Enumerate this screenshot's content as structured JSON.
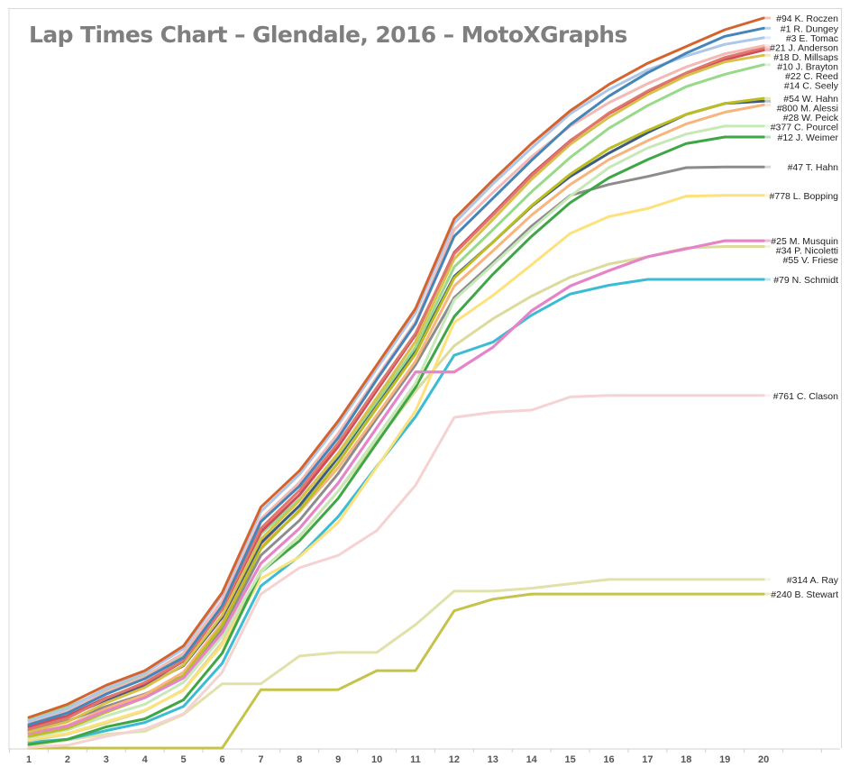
{
  "chart_data": {
    "type": "line",
    "title": "Lap Times Chart – Glendale, 2016 – MotoXGraphs",
    "xlabel": "",
    "ylabel": "",
    "x": [
      1,
      2,
      3,
      4,
      5,
      6,
      7,
      8,
      9,
      10,
      11,
      12,
      13,
      14,
      15,
      16,
      17,
      18,
      19,
      20
    ],
    "xlim": [
      1,
      21
    ],
    "ylim": [
      0,
      100
    ],
    "grid": false,
    "legend": "direct-labels-right",
    "series": [
      {
        "name": "#94 K. Roczen",
        "color": "#d4632e",
        "values": [
          4.2,
          6.0,
          8.6,
          10.6,
          14.0,
          21.3,
          33.0,
          38.0,
          44.8,
          52.5,
          60.2,
          72.5,
          77.8,
          82.8,
          87.3,
          90.9,
          93.8,
          96.1,
          98.4,
          100.0
        ]
      },
      {
        "name": "#1 R. Dungey",
        "color": "#4585b8",
        "values": [
          3.2,
          4.8,
          7.4,
          9.5,
          12.4,
          19.5,
          31.0,
          35.9,
          42.5,
          50.5,
          58.1,
          70.1,
          75.3,
          80.5,
          85.4,
          89.3,
          92.5,
          95.2,
          97.5,
          98.6
        ]
      },
      {
        "name": "#3 E. Tomac",
        "color": "#aec7e8",
        "values": [
          3.7,
          5.4,
          8.2,
          10.3,
          13.6,
          21.0,
          32.4,
          37.5,
          44.3,
          52.0,
          59.6,
          71.9,
          77.3,
          82.2,
          86.9,
          90.2,
          92.9,
          94.8,
          96.4,
          97.3
        ]
      },
      {
        "name": "#21 J. Anderson",
        "color": "#f2b9b5",
        "values": [
          3.4,
          5.0,
          7.7,
          9.8,
          13.0,
          20.2,
          31.4,
          36.4,
          43.1,
          50.8,
          58.4,
          71.0,
          76.1,
          81.0,
          85.2,
          88.4,
          91.0,
          93.3,
          95.1,
          96.2
        ]
      },
      {
        "name": "#18 D. Millsaps",
        "color": "#e0776d",
        "values": [
          2.6,
          4.1,
          6.8,
          9.0,
          12.0,
          19.1,
          30.1,
          35.3,
          41.8,
          49.4,
          56.8,
          67.7,
          73.0,
          78.4,
          83.1,
          87.0,
          90.0,
          92.5,
          94.6,
          95.9
        ]
      },
      {
        "name": "#22 C. Reed",
        "color": "#d8c14b",
        "values": [
          2.2,
          3.6,
          6.2,
          8.3,
          11.4,
          18.2,
          28.6,
          33.9,
          40.4,
          48.0,
          55.7,
          67.0,
          72.4,
          77.9,
          82.7,
          86.4,
          89.5,
          92.1,
          94.0,
          94.9
        ]
      },
      {
        "name": "#10 J. Brayton",
        "color": "#cf4b5a",
        "values": [
          3.0,
          4.4,
          6.9,
          8.8,
          11.9,
          19.0,
          29.6,
          34.7,
          41.3,
          49.0,
          56.6,
          67.9,
          73.2,
          78.6,
          83.2,
          86.9,
          89.8,
          92.3,
          94.3,
          95.6
        ]
      },
      {
        "name": "#14 C. Seely",
        "color": "#98d98a",
        "values": [
          3.9,
          5.6,
          8.0,
          9.9,
          12.8,
          19.3,
          29.3,
          34.1,
          40.2,
          47.5,
          54.9,
          65.9,
          71.0,
          76.2,
          80.9,
          84.9,
          88.0,
          90.6,
          92.3,
          93.6
        ]
      },
      {
        "name": "#25 M. Musquin",
        "color": "#e584c8",
        "values": [
          2.0,
          3.0,
          5.1,
          6.9,
          9.6,
          15.8,
          25.3,
          30.1,
          36.3,
          43.9,
          51.5,
          51.5,
          54.9,
          59.9,
          63.3,
          65.4,
          67.3,
          68.4,
          69.5,
          69.5
        ]
      },
      {
        "name": "#54 W. Hahn",
        "color": "#bcbd22",
        "values": [
          1.6,
          2.7,
          4.9,
          6.9,
          9.9,
          16.8,
          27.3,
          32.6,
          39.1,
          46.6,
          54.0,
          64.4,
          69.3,
          74.3,
          78.6,
          82.1,
          84.6,
          86.8,
          88.3,
          89.0
        ]
      },
      {
        "name": "#800 M. Alessi",
        "color": "#3d5a80",
        "values": [
          2.9,
          4.3,
          6.6,
          8.5,
          11.3,
          17.9,
          28.1,
          33.2,
          39.8,
          47.3,
          54.4,
          64.6,
          69.3,
          74.2,
          78.3,
          81.5,
          84.3,
          86.8,
          88.3,
          88.6
        ]
      },
      {
        "name": "#28 W. Peick",
        "color": "#f8b47d",
        "values": [
          1.9,
          3.1,
          5.4,
          7.3,
          10.4,
          17.2,
          27.7,
          32.4,
          38.4,
          45.6,
          53.0,
          63.3,
          68.1,
          73.0,
          77.2,
          80.6,
          83.2,
          85.5,
          87.1,
          88.1
        ]
      },
      {
        "name": "#377 C. Pourcel",
        "color": "#c7e8b8",
        "values": [
          1.4,
          2.5,
          4.4,
          6.0,
          9.0,
          15.3,
          24.1,
          29.1,
          35.2,
          42.6,
          50.0,
          61.4,
          66.2,
          71.1,
          75.6,
          79.5,
          82.2,
          84.1,
          85.2,
          85.2
        ]
      },
      {
        "name": "#12 J. Weimer",
        "color": "#3fa645",
        "values": [
          0.5,
          1.2,
          2.9,
          4.0,
          6.6,
          13.0,
          24.1,
          28.4,
          34.2,
          41.8,
          49.4,
          59.1,
          64.9,
          70.1,
          74.7,
          78.1,
          80.6,
          82.8,
          83.7,
          83.7
        ]
      },
      {
        "name": "#47 T. Hahn",
        "color": "#8c8c8c",
        "values": [
          2.4,
          3.7,
          5.7,
          7.4,
          9.9,
          16.3,
          26.4,
          31.2,
          37.6,
          45.2,
          52.5,
          61.7,
          66.5,
          71.5,
          75.7,
          77.2,
          78.3,
          79.5,
          79.6,
          79.6
        ]
      },
      {
        "name": "#778 L. Bopping",
        "color": "#fde17c",
        "values": [
          1.2,
          2.0,
          3.6,
          5.2,
          7.9,
          14.1,
          23.2,
          26.2,
          30.9,
          38.5,
          46.2,
          58.3,
          62.0,
          66.2,
          70.5,
          72.8,
          73.9,
          75.6,
          75.7,
          75.7
        ]
      },
      {
        "name": "#34 P. Nicoletti",
        "color": "#e384c8",
        "values": [
          2.0,
          3.0,
          5.1,
          6.9,
          9.6,
          15.8,
          25.3,
          30.1,
          36.3,
          43.9,
          51.5,
          51.5,
          54.9,
          59.9,
          63.3,
          65.4,
          67.3,
          68.4,
          69.5,
          69.5
        ]
      },
      {
        "name": "#55 V. Friese",
        "color": "#dbdb9d",
        "values": [
          1.0,
          1.9,
          3.4,
          5.1,
          8.0,
          14.5,
          24.3,
          29.0,
          35.2,
          42.0,
          48.9,
          55.1,
          58.8,
          61.9,
          64.5,
          66.3,
          67.3,
          68.5,
          68.7,
          68.7
        ]
      },
      {
        "name": "#79 N. Schmidt",
        "color": "#3cbcd4",
        "values": [
          0.8,
          1.2,
          2.4,
          3.5,
          5.7,
          11.6,
          22.2,
          26.3,
          31.7,
          38.6,
          45.4,
          53.8,
          55.6,
          59.3,
          62.2,
          63.4,
          64.2,
          64.2,
          64.2,
          64.2
        ]
      },
      {
        "name": "#761 C. Clason",
        "color": "#f4d3d2",
        "values": [
          0.1,
          0.4,
          1.6,
          2.6,
          4.7,
          10.4,
          21.1,
          24.7,
          26.4,
          29.8,
          36.0,
          45.3,
          46.0,
          46.3,
          48.1,
          48.3,
          48.3,
          48.3,
          48.3,
          48.3
        ]
      },
      {
        "name": "#314 A. Ray",
        "color": "#e1e1aa",
        "values": [
          0.3,
          1.1,
          1.9,
          2.3,
          4.6,
          8.8,
          8.8,
          12.6,
          13.1,
          13.1,
          16.9,
          21.5,
          21.5,
          21.9,
          22.5,
          23.1,
          23.1,
          23.1,
          23.1,
          23.1
        ]
      },
      {
        "name": "#240 B. Stewart",
        "color": "#c5c34b",
        "values": [
          0.0,
          0.0,
          0.0,
          0.0,
          0.0,
          0.0,
          8.0,
          8.0,
          8.0,
          10.6,
          10.6,
          18.8,
          20.4,
          21.1,
          21.1,
          21.1,
          21.1,
          21.1,
          21.1,
          21.1
        ]
      }
    ],
    "labels": [
      {
        "text": "#94 K. Roczen",
        "series": 0
      },
      {
        "text": "#1 R. Dungey",
        "series": 1
      },
      {
        "text": "#3 E. Tomac",
        "series": 2
      },
      {
        "text": "#21 J. Anderson",
        "series": 3
      },
      {
        "text": "#18 D. Millsaps",
        "series": 4
      },
      {
        "text": "#22 C. Reed",
        "series": 5
      },
      {
        "text": "#10 J. Brayton",
        "series": 6
      },
      {
        "text": "#14 C. Seely",
        "series": 7
      },
      {
        "text": "#25 M. Musquin",
        "series": 8
      },
      {
        "text": "#54 W. Hahn",
        "series": 9
      },
      {
        "text": "#800 M. Alessi",
        "series": 10
      },
      {
        "text": "#28 W. Peick",
        "series": 11
      },
      {
        "text": "#377 C. Pourcel",
        "series": 12
      },
      {
        "text": "#12 J. Weimer",
        "series": 13
      },
      {
        "text": "#47 T. Hahn",
        "series": 14
      },
      {
        "text": "#778 L. Bopping",
        "series": 15
      },
      {
        "text": "#34 P. Nicoletti",
        "series": 16
      },
      {
        "text": "#55 V. Friese",
        "series": 17
      },
      {
        "text": "#79 N. Schmidt",
        "series": 18
      },
      {
        "text": "#761 C. Clason",
        "series": 19
      },
      {
        "text": "#314 A. Ray",
        "series": 20
      },
      {
        "text": "#240 B. Stewart",
        "series": 21
      }
    ]
  }
}
